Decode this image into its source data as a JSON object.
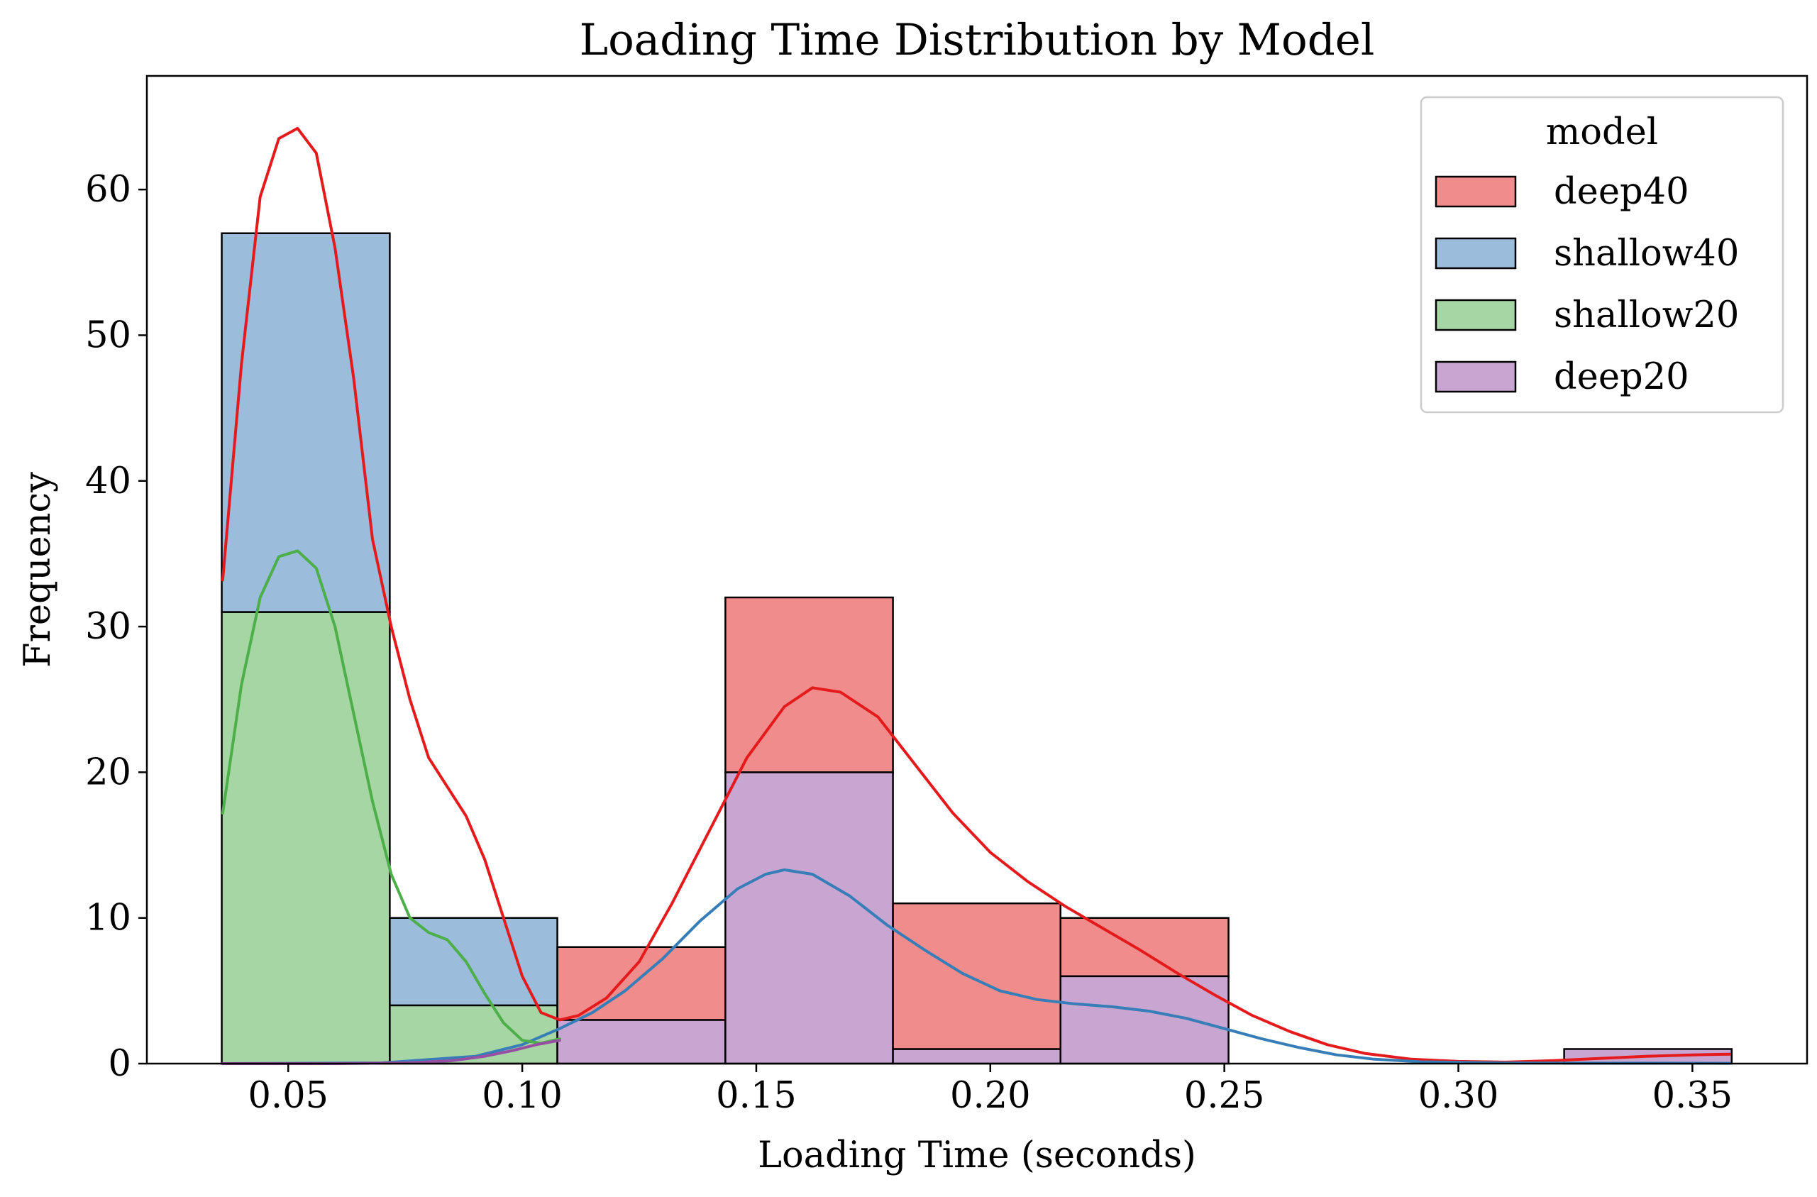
{
  "chart_data": {
    "type": "histogram",
    "title": "Loading Time Distribution by Model",
    "xlabel": "Loading Time (seconds)",
    "ylabel": "Frequency",
    "xlim": [
      0.0198,
      0.3745
    ],
    "ylim": [
      0,
      67.8
    ],
    "xticks": [
      0.05,
      0.1,
      0.15,
      0.2,
      0.25,
      0.3,
      0.35
    ],
    "xtick_labels": [
      "0.05",
      "0.10",
      "0.15",
      "0.20",
      "0.25",
      "0.30",
      "0.35"
    ],
    "yticks": [
      0,
      10,
      20,
      30,
      40,
      50,
      60
    ],
    "ytick_labels": [
      "0",
      "10",
      "20",
      "30",
      "40",
      "50",
      "60"
    ],
    "grid": false,
    "stacked": true,
    "bin_edges": [
      0.0358,
      0.0717,
      0.1075,
      0.1434,
      0.1792,
      0.215,
      0.2509,
      0.2867,
      0.3226,
      0.3584
    ],
    "legend": {
      "title": "model",
      "placement": "upper right"
    },
    "series": [
      {
        "name": "deep20",
        "color": "#c9a5d1",
        "line_color": "#984ea3",
        "counts": [
          0,
          0,
          3,
          20,
          1,
          6,
          0,
          0,
          1
        ]
      },
      {
        "name": "shallow20",
        "color": "#a6d6a3",
        "line_color": "#4daf4a",
        "counts": [
          31,
          4,
          0,
          0,
          0,
          0,
          0,
          0,
          0
        ]
      },
      {
        "name": "shallow40",
        "color": "#9bbcdb",
        "line_color": "#377eb8",
        "counts": [
          26,
          6,
          0,
          0,
          0,
          0,
          0,
          0,
          0
        ]
      },
      {
        "name": "deep40",
        "color": "#f08c8c",
        "line_color": "#e41a1c",
        "counts": [
          0,
          0,
          5,
          12,
          10,
          4,
          0,
          0,
          0
        ]
      }
    ],
    "legend_order": [
      "deep40",
      "shallow40",
      "shallow20",
      "deep20"
    ],
    "kde": [
      {
        "name": "deep40",
        "color": "#e41a1c",
        "points": [
          [
            0.036,
            33.2
          ],
          [
            0.04,
            48
          ],
          [
            0.044,
            59.5
          ],
          [
            0.048,
            63.5
          ],
          [
            0.052,
            64.2
          ],
          [
            0.056,
            62.5
          ],
          [
            0.06,
            56
          ],
          [
            0.064,
            47
          ],
          [
            0.068,
            36
          ],
          [
            0.072,
            30
          ],
          [
            0.076,
            25
          ],
          [
            0.08,
            21
          ],
          [
            0.084,
            19
          ],
          [
            0.088,
            17
          ],
          [
            0.092,
            14
          ],
          [
            0.096,
            10
          ],
          [
            0.1,
            6
          ],
          [
            0.104,
            3.5
          ],
          [
            0.108,
            3
          ],
          [
            0.112,
            3.3
          ],
          [
            0.118,
            4.5
          ],
          [
            0.125,
            7
          ],
          [
            0.132,
            11
          ],
          [
            0.14,
            16
          ],
          [
            0.148,
            21
          ],
          [
            0.156,
            24.5
          ],
          [
            0.162,
            25.8
          ],
          [
            0.168,
            25.5
          ],
          [
            0.176,
            23.8
          ],
          [
            0.184,
            20.5
          ],
          [
            0.192,
            17.2
          ],
          [
            0.2,
            14.5
          ],
          [
            0.208,
            12.5
          ],
          [
            0.216,
            10.8
          ],
          [
            0.224,
            9.3
          ],
          [
            0.232,
            7.8
          ],
          [
            0.24,
            6.2
          ],
          [
            0.248,
            4.7
          ],
          [
            0.256,
            3.3
          ],
          [
            0.264,
            2.2
          ],
          [
            0.272,
            1.3
          ],
          [
            0.28,
            0.7
          ],
          [
            0.29,
            0.3
          ],
          [
            0.3,
            0.15
          ],
          [
            0.31,
            0.1
          ],
          [
            0.32,
            0.2
          ],
          [
            0.33,
            0.35
          ],
          [
            0.34,
            0.5
          ],
          [
            0.35,
            0.6
          ],
          [
            0.358,
            0.65
          ]
        ]
      },
      {
        "name": "shallow40",
        "color": "#377eb8",
        "points": [
          [
            0.036,
            0
          ],
          [
            0.07,
            0.05
          ],
          [
            0.09,
            0.5
          ],
          [
            0.1,
            1.3
          ],
          [
            0.108,
            2.4
          ],
          [
            0.115,
            3.5
          ],
          [
            0.122,
            5
          ],
          [
            0.13,
            7.2
          ],
          [
            0.138,
            9.8
          ],
          [
            0.146,
            12
          ],
          [
            0.152,
            13
          ],
          [
            0.156,
            13.3
          ],
          [
            0.162,
            13
          ],
          [
            0.17,
            11.5
          ],
          [
            0.178,
            9.5
          ],
          [
            0.186,
            7.8
          ],
          [
            0.194,
            6.2
          ],
          [
            0.202,
            5
          ],
          [
            0.21,
            4.4
          ],
          [
            0.218,
            4.1
          ],
          [
            0.226,
            3.9
          ],
          [
            0.234,
            3.6
          ],
          [
            0.242,
            3.1
          ],
          [
            0.25,
            2.4
          ],
          [
            0.258,
            1.7
          ],
          [
            0.266,
            1.1
          ],
          [
            0.274,
            0.6
          ],
          [
            0.282,
            0.3
          ],
          [
            0.292,
            0.12
          ],
          [
            0.31,
            0.05
          ],
          [
            0.358,
            0.02
          ]
        ]
      },
      {
        "name": "shallow20",
        "color": "#4daf4a",
        "points": [
          [
            0.036,
            17.2
          ],
          [
            0.04,
            26
          ],
          [
            0.044,
            32
          ],
          [
            0.048,
            34.8
          ],
          [
            0.052,
            35.2
          ],
          [
            0.056,
            34
          ],
          [
            0.06,
            30
          ],
          [
            0.064,
            24
          ],
          [
            0.068,
            18
          ],
          [
            0.072,
            13
          ],
          [
            0.076,
            10
          ],
          [
            0.08,
            9
          ],
          [
            0.084,
            8.5
          ],
          [
            0.088,
            7
          ],
          [
            0.092,
            4.8
          ],
          [
            0.096,
            2.8
          ],
          [
            0.1,
            1.6
          ],
          [
            0.104,
            1.4
          ],
          [
            0.108,
            1.7
          ]
        ]
      },
      {
        "name": "deep20",
        "color": "#984ea3",
        "points": [
          [
            0.036,
            0
          ],
          [
            0.06,
            0
          ],
          [
            0.075,
            0.05
          ],
          [
            0.085,
            0.2
          ],
          [
            0.092,
            0.5
          ],
          [
            0.098,
            0.9
          ],
          [
            0.103,
            1.3
          ],
          [
            0.108,
            1.6
          ]
        ]
      }
    ]
  }
}
